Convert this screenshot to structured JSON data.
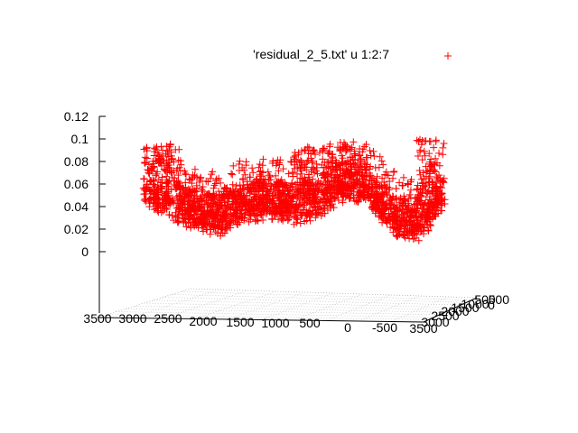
{
  "chart_data": {
    "type": "scatter",
    "projection": "3d",
    "legend": {
      "entries": [
        {
          "label": "'residual_2_5.txt' u 1:2:7",
          "marker": "+",
          "color": "#ff0000"
        }
      ],
      "placement": "top-right"
    },
    "x_ticks": [
      "3500",
      "3000",
      "2500",
      "2000",
      "1500",
      "1000",
      "500",
      "0",
      "-500"
    ],
    "y_ticks": [
      "-500",
      "0",
      "500",
      "1000",
      "1500",
      "2000",
      "2500",
      "3000",
      "3500"
    ],
    "y_ticks_visible": [
      "3500",
      "3000",
      "2500",
      "2000",
      "1500",
      "1000",
      "500"
    ],
    "z_ticks": [
      "0",
      "0.02",
      "0.04",
      "0.06",
      "0.08",
      "0.1",
      "0.12"
    ],
    "x_range": [
      -500,
      3500
    ],
    "y_range": [
      -500,
      3500
    ],
    "z_range": [
      0,
      0.12
    ],
    "grid": "base plane only",
    "series_color": "#ff0000",
    "surface_profile": {
      "x": [
        3300,
        3000,
        2700,
        2400,
        2100,
        1800,
        1500,
        1200,
        900,
        600,
        300,
        0,
        -300
      ],
      "z_mean": [
        0.06,
        0.05,
        0.04,
        0.035,
        0.045,
        0.05,
        0.045,
        0.05,
        0.065,
        0.06,
        0.035,
        0.03,
        0.055
      ]
    }
  }
}
